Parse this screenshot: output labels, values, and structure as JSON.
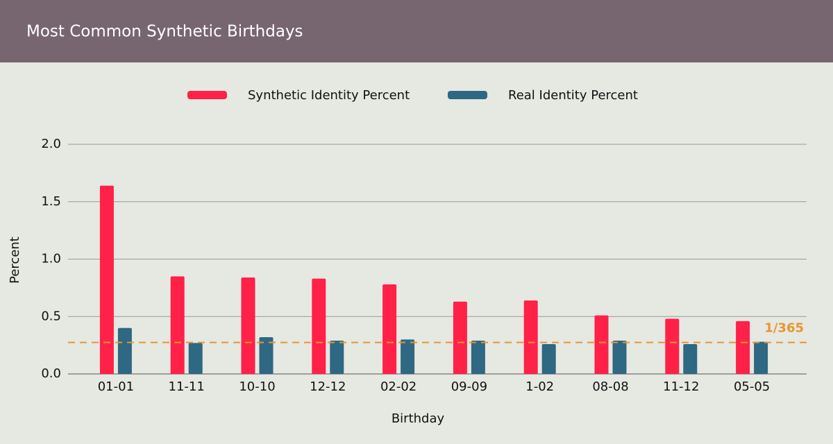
{
  "chart_data": {
    "type": "bar",
    "title": "Most Common Synthetic Birthdays",
    "x_label": "Birthday",
    "y_label": "Percent",
    "categories": [
      "01-01",
      "11-11",
      "10-10",
      "12-12",
      "02-02",
      "09-09",
      "1-02",
      "08-08",
      "11-12",
      "05-05"
    ],
    "series": [
      {
        "name": "Synthetic Identity Percent",
        "color": "#ff2148",
        "values": [
          1.64,
          0.85,
          0.84,
          0.83,
          0.78,
          0.63,
          0.64,
          0.51,
          0.48,
          0.46
        ]
      },
      {
        "name": "Real Identity Percent",
        "color": "#2e6882",
        "values": [
          0.4,
          0.27,
          0.32,
          0.29,
          0.3,
          0.29,
          0.26,
          0.29,
          0.26,
          0.28
        ]
      }
    ],
    "reference_line": {
      "value": 0.274,
      "label": "1/365",
      "color": "#e8962e"
    },
    "ylim": [
      0,
      2
    ],
    "yticks": [
      {
        "value": 0,
        "label": "0.0"
      },
      {
        "value": 0.5,
        "label": "0.5"
      },
      {
        "value": 1,
        "label": "1.0"
      },
      {
        "value": 1.5,
        "label": "1.5"
      },
      {
        "value": 2,
        "label": "2.0"
      }
    ],
    "grid": true,
    "legend": "top"
  }
}
